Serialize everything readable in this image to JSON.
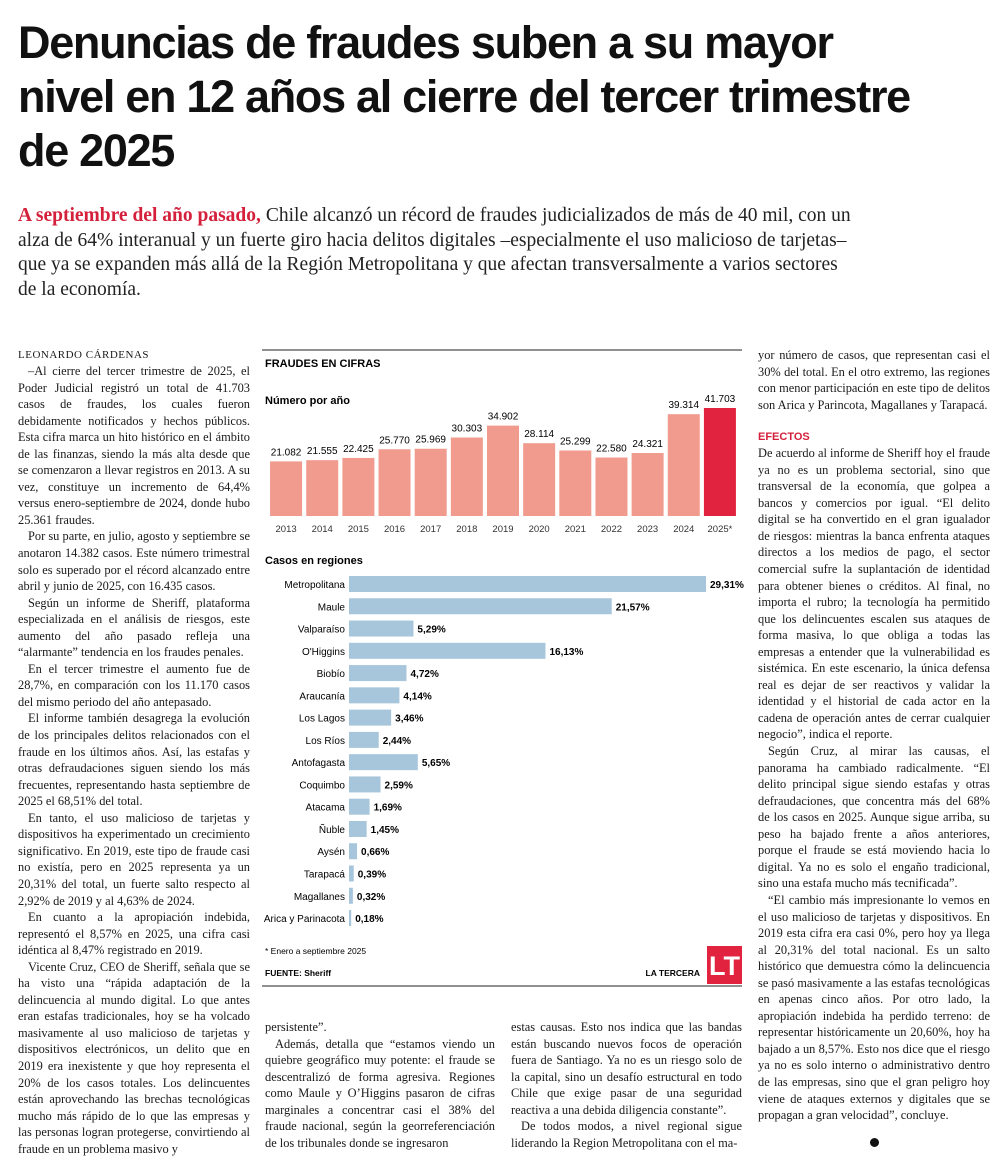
{
  "headline": "Denuncias de fraudes suben a su mayor nivel en 12 años al cierre del tercer trimestre de 2025",
  "lede": {
    "lead": "A septiembre del año pasado,",
    "text": "Chile alcanzó un récord de fraudes judicializados de más de 40 mil, con un alza de 64% interanual y un fuerte giro hacia delitos digitales –especialmente el uso malicioso de tarjetas– que ya se expanden más allá de la Región Metropolitana y que afectan transversalmente a varios sectores de la economía."
  },
  "byline": "LEONARDO CÁRDENAS",
  "article": {
    "column_1": [
      "–Al cierre del tercer trimestre de 2025, el Poder Judicial registró un total de 41.703 casos de fraudes, los cuales fueron debidamente notificados y hechos públicos. Esta cifra marca un hito histórico en el ámbito de las finanzas, siendo la más alta desde que se comenzaron a llevar registros en 2013. A su vez, constituye un incremento de 64,4% versus enero-septiembre de 2024, donde hubo 25.361 fraudes.",
      "Por su parte, en julio, agosto y septiembre se anotaron 14.382 casos. Este número trimestral solo es superado por el récord alcanzado entre abril y junio de 2025, con 16.435 casos.",
      "Según un informe de Sheriff, plataforma especializada en el análisis de riesgos, este aumento del año pasado refleja una “alarmante” tendencia en los fraudes penales.",
      "En el tercer trimestre el aumento fue de 28,7%, en comparación con los 11.170 casos del mismo periodo del año antepasado.",
      "El informe también desagrega la evolución de los principales delitos relacionados con el fraude en los últimos años. Así, las estafas y otras defraudaciones siguen siendo los más frecuentes, representando hasta septiembre de 2025 el 68,51% del total.",
      "En tanto, el uso malicioso de tarjetas y dispositivos ha experimentado un crecimiento significativo. En 2019, este tipo de fraude casi no existía, pero en 2025 representa ya un 20,31% del total, un fuerte salto respecto al 2,92% de 2019 y al 4,63% de 2024.",
      "En cuanto a la apropiación indebida, representó el 8,57% en 2025, una cifra casi idéntica al 8,47% registrado en 2019.",
      "Vicente Cruz, CEO de Sheriff, señala que se ha visto una “rápida adaptación de la delincuencia al mundo digital. Lo que antes eran estafas tradicionales, hoy se ha volcado masivamente al uso malicioso de tarjetas y dispositivos electrónicos, un delito que en 2019 era inexistente y que hoy representa el 20% de los casos totales. Los delincuentes están aprovechando las brechas tecnológicas mucho más rápido de lo que las empresas y las personas logran protegerse, convirtiendo al fraude en un problema masivo y"
    ],
    "column_2": [
      "persistente”.",
      "Además, detalla que “estamos viendo un quiebre geográfico muy potente: el fraude se descentralizó de forma agresiva. Regiones como Maule y O’Higgins pasaron de cifras marginales a concentrar casi el 38% del fraude nacional, según la georreferenciación de los tribunales donde se ingresaron"
    ],
    "column_3": [
      "estas causas. Esto nos indica que las bandas están buscando nuevos focos de operación fuera de Santiago. Ya no es un riesgo solo de la capital, sino un desafío estructural en todo Chile que exige pasar de una seguridad reactiva a una debida diligencia constante”.",
      "De todos modos, a nivel regional sigue liderando la Region Metropolitana con el ma-"
    ],
    "column_4_top": [
      "yor número de casos, que representan casi el 30% del total. En el otro extremo, las regiones con menor participación en este tipo de delitos son Arica y Parincota, Magallanes y Tarapacá."
    ],
    "section_heading": "EFECTOS",
    "column_4": [
      "De acuerdo al informe de Sheriff hoy el fraude ya no es un problema sectorial, sino que transversal de la economía, que golpea a bancos y comercios por igual. “El delito digital se ha convertido en el gran igualador de riesgos: mientras la banca enfrenta ataques directos a los medios de pago, el sector comercial sufre la suplantación de identidad para obtener bienes o créditos. Al final, no importa el rubro; la tecnología ha permitido que los delincuentes escalen sus ataques de forma masiva, lo que obliga a todas las empresas a entender que la vulnerabilidad es sistémica. En este escenario, la única defensa real es dejar de ser reactivos y validar la identidad y el historial de cada actor en la cadena de operación antes de cerrar cualquier negocio”, indica el reporte.",
      "Según Cruz, al mirar las causas, el panorama ha cambiado radicalmente. “El delito principal sigue siendo estafas y otras defraudaciones, que concentra más del 68% de los casos en 2025. Aunque sigue arriba, su peso ha bajado frente a años anteriores, porque el fraude se está moviendo hacia lo digital. Ya no es solo el engaño tradicional, sino una estafa mucho más tecnificada”.",
      "“El cambio más impresionante lo vemos en el uso malicioso de tarjetas y dispositivos. En 2019 esta cifra era casi 0%, pero hoy ya llega al 20,31% del total nacional. Es un salto histórico que demuestra cómo la delincuencia se pasó masivamente a las estafas tecnológicas en apenas cinco años. Por otro lado, la apropiación indebida ha perdido terreno: de representar históricamente un 20,60%, hoy ha bajado a un 8,57%. Esto nos dice que el riesgo ya no es solo interno o administrativo dentro de las empresas, sino que el gran peligro hoy viene de ataques externos y digitales que se propagan a gran velocidad”, concluye."
    ]
  },
  "graphic": {
    "title": "FRAUDES EN CIFRAS",
    "footnote": "* Enero a septiembre 2025",
    "source": "FUENTE: Sheriff",
    "publisher": "LA TERCERA",
    "logo": "LT"
  },
  "chart_data": [
    {
      "type": "bar",
      "title": "Número por año",
      "categories": [
        "2013",
        "2014",
        "2015",
        "2016",
        "2017",
        "2018",
        "2019",
        "2020",
        "2021",
        "2022",
        "2023",
        "2024",
        "2025*"
      ],
      "values": [
        21082,
        21555,
        22425,
        25770,
        25969,
        30303,
        34902,
        28114,
        25299,
        22580,
        24321,
        39314,
        41703
      ],
      "value_labels": [
        "21.082",
        "21.555",
        "22.425",
        "25.770",
        "25.969",
        "30.303",
        "34.902",
        "28.114",
        "25.299",
        "22.580",
        "24.321",
        "39.314",
        "41.703"
      ],
      "colors": [
        "#f09b8e",
        "#f09b8e",
        "#f09b8e",
        "#f09b8e",
        "#f09b8e",
        "#f09b8e",
        "#f09b8e",
        "#f09b8e",
        "#f09b8e",
        "#f09b8e",
        "#f09b8e",
        "#f09b8e",
        "#e1233f"
      ]
    },
    {
      "type": "barh",
      "title": "Casos en regiones",
      "categories": [
        "Metropolitana",
        "Maule",
        "Valparaíso",
        "O'Higgins",
        "Biobío",
        "Araucanía",
        "Los Lagos",
        "Los Ríos",
        "Antofagasta",
        "Coquimbo",
        "Atacama",
        "Ñuble",
        "Aysén",
        "Tarapacá",
        "Magallanes",
        "Arica y Parinacota"
      ],
      "values": [
        29.31,
        21.57,
        5.29,
        16.13,
        4.72,
        4.14,
        3.46,
        2.44,
        5.65,
        2.59,
        1.69,
        1.45,
        0.66,
        0.39,
        0.32,
        0.18
      ],
      "value_labels": [
        "29,31%",
        "21,57%",
        "5,29%",
        "16,13%",
        "4,72%",
        "4,14%",
        "3,46%",
        "2,44%",
        "5,65%",
        "2,59%",
        "1,69%",
        "1,45%",
        "0,66%",
        "0,39%",
        "0,32%",
        "0,18%"
      ],
      "color": "#a8c6db"
    }
  ]
}
